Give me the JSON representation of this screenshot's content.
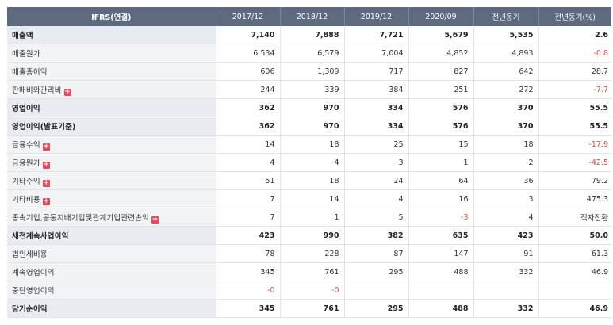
{
  "header": {
    "label": "IFRS(연결)",
    "periods": [
      "2017/12",
      "2018/12",
      "2019/12",
      "2020/09",
      "전년동기",
      "전년동기(%)"
    ]
  },
  "rows": [
    {
      "label": "매출액",
      "bold": true,
      "expand": false,
      "values": [
        "7,140",
        "7,888",
        "7,721",
        "5,679",
        "5,535",
        "2.6"
      ]
    },
    {
      "label": "매출원가",
      "bold": false,
      "expand": false,
      "values": [
        "6,534",
        "6,579",
        "7,004",
        "4,852",
        "4,893",
        "-0.8"
      ]
    },
    {
      "label": "매출총이익",
      "bold": false,
      "expand": false,
      "values": [
        "606",
        "1,309",
        "717",
        "827",
        "642",
        "28.7"
      ]
    },
    {
      "label": "판매비와관리비",
      "bold": false,
      "expand": true,
      "values": [
        "244",
        "339",
        "384",
        "251",
        "272",
        "-7.7"
      ]
    },
    {
      "label": "영업이익",
      "bold": true,
      "expand": false,
      "values": [
        "362",
        "970",
        "334",
        "576",
        "370",
        "55.5"
      ]
    },
    {
      "label": "영업이익(발표기준)",
      "bold": true,
      "expand": false,
      "values": [
        "362",
        "970",
        "334",
        "576",
        "370",
        "55.5"
      ]
    },
    {
      "label": "금융수익",
      "bold": false,
      "expand": true,
      "values": [
        "14",
        "18",
        "25",
        "15",
        "18",
        "-17.9"
      ]
    },
    {
      "label": "금융원가",
      "bold": false,
      "expand": true,
      "values": [
        "4",
        "4",
        "3",
        "1",
        "2",
        "-42.5"
      ]
    },
    {
      "label": "기타수익",
      "bold": false,
      "expand": true,
      "values": [
        "51",
        "18",
        "24",
        "64",
        "36",
        "79.2"
      ]
    },
    {
      "label": "기타비용",
      "bold": false,
      "expand": true,
      "values": [
        "7",
        "14",
        "4",
        "16",
        "3",
        "475.3"
      ]
    },
    {
      "label": "종속기업,공동지배기업및관계기업관련손익",
      "bold": false,
      "expand": true,
      "values": [
        "7",
        "1",
        "5",
        "-3",
        "4",
        "적자전환"
      ]
    },
    {
      "label": "세전계속사업이익",
      "bold": true,
      "expand": false,
      "values": [
        "423",
        "990",
        "382",
        "635",
        "423",
        "50.0"
      ]
    },
    {
      "label": "법인세비용",
      "bold": false,
      "expand": false,
      "values": [
        "78",
        "228",
        "87",
        "147",
        "91",
        "61.3"
      ]
    },
    {
      "label": "계속영업이익",
      "bold": false,
      "expand": false,
      "values": [
        "345",
        "761",
        "295",
        "488",
        "332",
        "46.9"
      ]
    },
    {
      "label": "중단영업이익",
      "bold": false,
      "expand": false,
      "values": [
        "-0",
        "-0",
        "",
        "",
        "",
        ""
      ]
    },
    {
      "label": "당기순이익",
      "bold": true,
      "expand": false,
      "values": [
        "345",
        "761",
        "295",
        "488",
        "332",
        "46.9"
      ]
    }
  ],
  "expand_symbol": "+",
  "colors": {
    "header_bg": "#5d6a7f",
    "label_bg": "#f1f3f6",
    "negative": "#e04a3a"
  }
}
